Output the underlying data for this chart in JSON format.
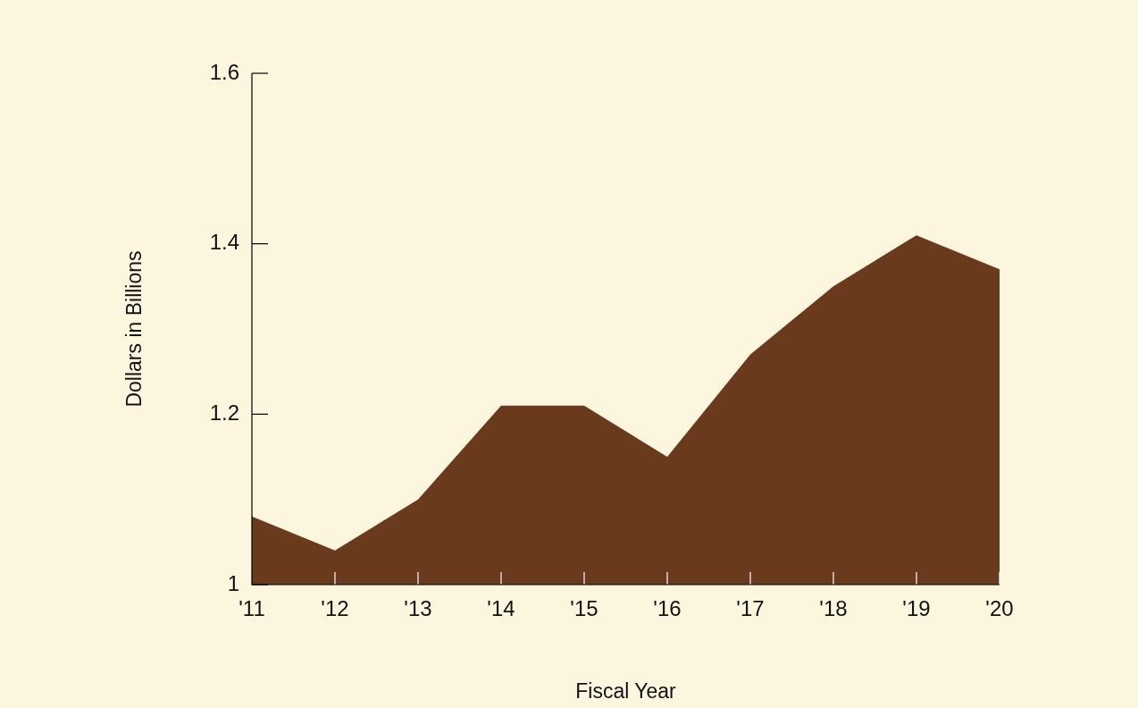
{
  "chart_data": {
    "type": "area",
    "xlabel": "Fiscal Year",
    "ylabel": "Dollars in Billions",
    "categories": [
      "'11",
      "'12",
      "'13",
      "'14",
      "'15",
      "'16",
      "'17",
      "'18",
      "'19",
      "'20"
    ],
    "series": [
      {
        "color": "#6a3a1c",
        "values": [
          1.08,
          1.04,
          1.1,
          1.21,
          1.21,
          1.15,
          1.27,
          1.35,
          1.41,
          1.37
        ]
      }
    ],
    "ylim": [
      1,
      1.6
    ],
    "yticks": [
      1,
      1.2,
      1.4,
      1.6
    ],
    "grid": false,
    "legend": false
  }
}
